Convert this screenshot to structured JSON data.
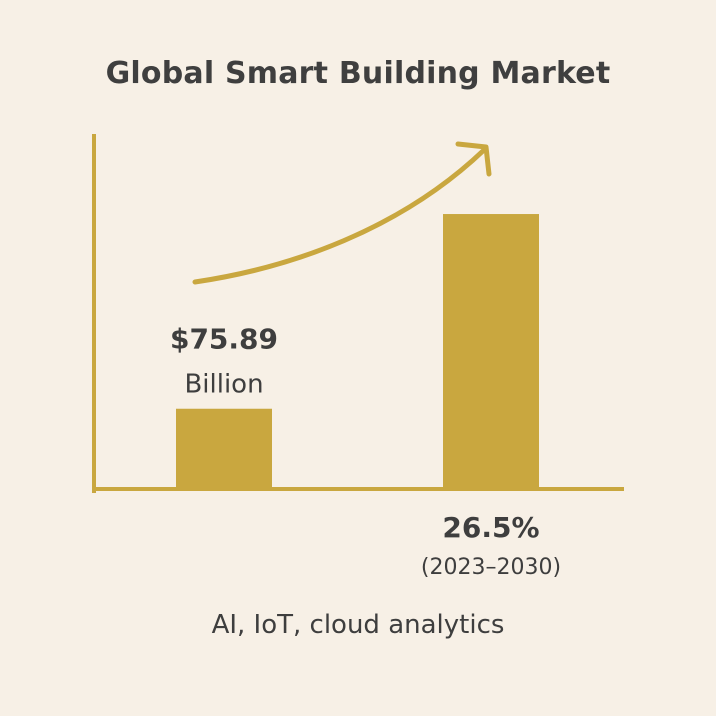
{
  "chart_data": {
    "type": "bar",
    "title": "Global Smart Building Market",
    "subtitle": "",
    "xlabel": "",
    "ylabel": "",
    "categories": [
      "",
      ""
    ],
    "values": [
      75.89,
      260
    ],
    "ylim": [
      0,
      330
    ],
    "grid": false,
    "legend": "none",
    "annotations": [
      {
        "bar": 0,
        "value_text": "$75.89",
        "unit_text": "Billion",
        "position": "above"
      },
      {
        "bar": 1,
        "value_text": "26.5%",
        "unit_text": "(2023–2030)",
        "position": "below"
      }
    ],
    "trend_arrow": true,
    "footer": "AI, IoT, cloud analytics"
  },
  "colors": {
    "background": "#f7f0e6",
    "bar": "#c9a73f",
    "axis": "#c9a73f",
    "arrow": "#c9a73f",
    "text": "#3e3e3e"
  }
}
